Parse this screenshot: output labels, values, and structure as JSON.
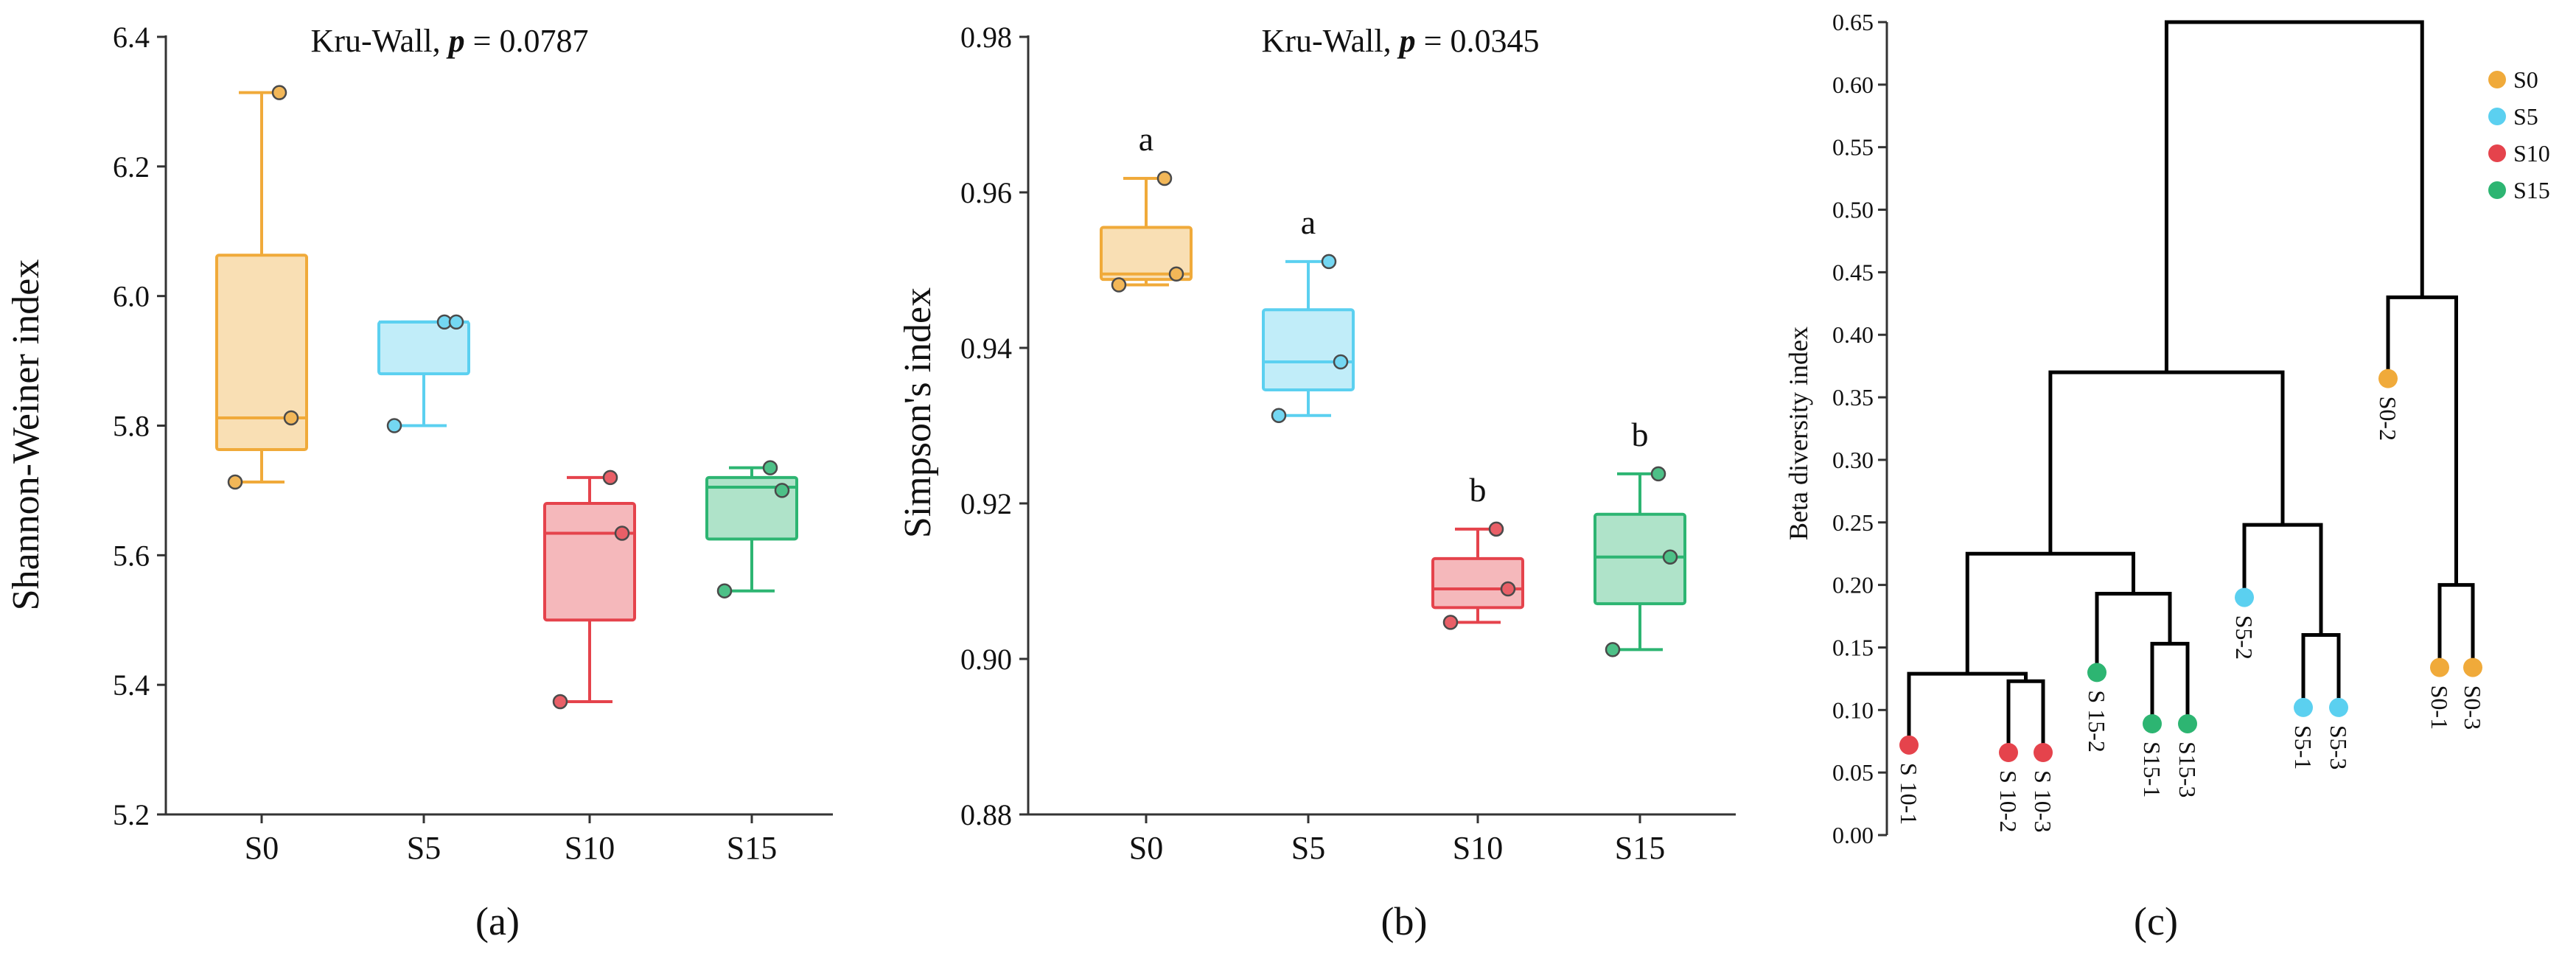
{
  "colors": {
    "S0": "#F0AA3A",
    "S5": "#5BD0F0",
    "S10": "#E5434C",
    "S15": "#2DB572"
  },
  "chart_data": [
    {
      "panel": "(a)",
      "type": "box",
      "title_prefix": "Kru-Wall, ",
      "title_p": "p",
      "title_suffix": " = 0.0787",
      "ylabel": "Shannon-Weiner index",
      "ylim": [
        5.2,
        6.4
      ],
      "yticks": [
        "5.2",
        "5.4",
        "5.6",
        "5.8",
        "6.0",
        "6.2",
        "6.4"
      ],
      "categories": [
        "S0",
        "S5",
        "S10",
        "S15"
      ],
      "boxes": [
        {
          "group": "S0",
          "min": 5.713,
          "q1": 5.763,
          "median": 5.812,
          "q3": 6.063,
          "max": 6.314,
          "points": [
            6.314,
            5.812,
            5.713
          ]
        },
        {
          "group": "S5",
          "min": 5.8,
          "q1": 5.88,
          "median": 5.96,
          "q3": 5.96,
          "max": 5.96,
          "points": [
            5.96,
            5.96,
            5.8
          ]
        },
        {
          "group": "S10",
          "min": 5.374,
          "q1": 5.5,
          "median": 5.634,
          "q3": 5.68,
          "max": 5.72,
          "points": [
            5.72,
            5.634,
            5.374
          ]
        },
        {
          "group": "S15",
          "min": 5.545,
          "q1": 5.625,
          "median": 5.705,
          "q3": 5.72,
          "max": 5.735,
          "points": [
            5.735,
            5.7,
            5.545
          ]
        }
      ],
      "significance": []
    },
    {
      "panel": "(b)",
      "type": "box",
      "title_prefix": "Kru-Wall, ",
      "title_p": "p",
      "title_suffix": " = 0.0345",
      "ylabel": "Simpson's index",
      "ylim": [
        0.88,
        0.98
      ],
      "yticks": [
        "0.88",
        "0.90",
        "0.92",
        "0.94",
        "0.96",
        "0.98"
      ],
      "categories": [
        "S0",
        "S5",
        "S10",
        "S15"
      ],
      "boxes": [
        {
          "group": "S0",
          "min": 0.9481,
          "q1": 0.9488,
          "median": 0.9495,
          "q3": 0.9555,
          "max": 0.9618,
          "points": [
            0.9618,
            0.9495,
            0.9481
          ]
        },
        {
          "group": "S5",
          "min": 0.9313,
          "q1": 0.9346,
          "median": 0.9382,
          "q3": 0.9449,
          "max": 0.9511,
          "points": [
            0.9511,
            0.9382,
            0.9313
          ]
        },
        {
          "group": "S10",
          "min": 0.9047,
          "q1": 0.9066,
          "median": 0.909,
          "q3": 0.9129,
          "max": 0.9167,
          "points": [
            0.9167,
            0.909,
            0.9047
          ]
        },
        {
          "group": "S15",
          "min": 0.9012,
          "q1": 0.9071,
          "median": 0.9131,
          "q3": 0.9186,
          "max": 0.9238,
          "points": [
            0.9238,
            0.9131,
            0.9012
          ]
        }
      ],
      "significance": [
        "a",
        "a",
        "b",
        "b"
      ]
    },
    {
      "panel": "(c)",
      "type": "dendrogram",
      "ylabel": "Beta diversity index",
      "ylim": [
        0.0,
        0.65
      ],
      "yticks": [
        "0.00",
        "0.05",
        "0.10",
        "0.15",
        "0.20",
        "0.25",
        "0.30",
        "0.35",
        "0.40",
        "0.45",
        "0.50",
        "0.55",
        "0.60",
        "0.65"
      ],
      "leaves": [
        {
          "label": "S 10-1",
          "group": "S10",
          "height": 0.072
        },
        {
          "label": "S 10-2",
          "group": "S10",
          "height": 0.066
        },
        {
          "label": "S 10-3",
          "group": "S10",
          "height": 0.066
        },
        {
          "label": "S 15-2",
          "group": "S15",
          "height": 0.13
        },
        {
          "label": "S15-1",
          "group": "S15",
          "height": 0.089
        },
        {
          "label": "S15-3",
          "group": "S15",
          "height": 0.089
        },
        {
          "label": "S5-2",
          "group": "S5",
          "height": 0.19
        },
        {
          "label": "S5-1",
          "group": "S5",
          "height": 0.102
        },
        {
          "label": "S5-3",
          "group": "S5",
          "height": 0.102
        },
        {
          "label": "S0-2",
          "group": "S0",
          "height": 0.365
        },
        {
          "label": "S0-1",
          "group": "S0",
          "height": 0.134
        },
        {
          "label": "S0-3",
          "group": "S0",
          "height": 0.134
        }
      ],
      "merges": [
        {
          "left": "L1",
          "right": "L2",
          "height": 0.123
        },
        {
          "left": "L0",
          "right": "N0",
          "height": 0.129
        },
        {
          "left": "L4",
          "right": "L5",
          "height": 0.153
        },
        {
          "left": "L3",
          "right": "N2",
          "height": 0.193
        },
        {
          "left": "N1",
          "right": "N3",
          "height": 0.225
        },
        {
          "left": "L7",
          "right": "L8",
          "height": 0.16
        },
        {
          "left": "L6",
          "right": "N5",
          "height": 0.248
        },
        {
          "left": "N4",
          "right": "N6",
          "height": 0.37
        },
        {
          "left": "L10",
          "right": "L11",
          "height": 0.2
        },
        {
          "left": "L9",
          "right": "N8",
          "height": 0.43
        },
        {
          "left": "N7",
          "right": "N9",
          "height": 0.65
        }
      ],
      "legend": [
        {
          "label": "S0",
          "group": "S0"
        },
        {
          "label": "S5",
          "group": "S5"
        },
        {
          "label": "S10",
          "group": "S10"
        },
        {
          "label": "S15",
          "group": "S15"
        }
      ]
    }
  ]
}
